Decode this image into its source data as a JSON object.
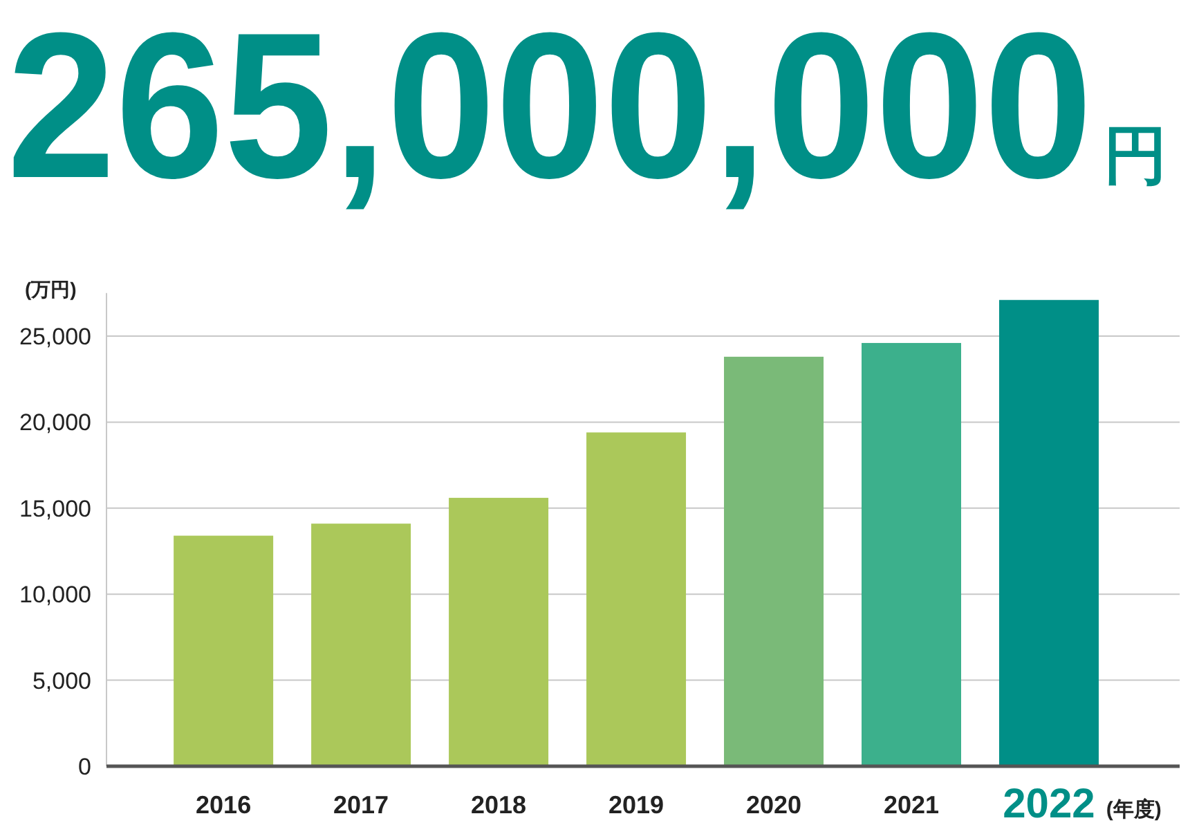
{
  "chart_data": {
    "type": "bar",
    "title": "265,000,000円",
    "ylabel": "(万円)",
    "xlabel": "(年度)",
    "categories": [
      "2016",
      "2017",
      "2018",
      "2019",
      "2020",
      "2021",
      "2022"
    ],
    "values": [
      13400,
      14100,
      15600,
      19400,
      23800,
      24600,
      27100
    ],
    "colors": [
      "#abc85a",
      "#abc85a",
      "#abc85a",
      "#abc85a",
      "#7aba78",
      "#3cb08c",
      "#008f87"
    ],
    "ylim": [
      0,
      27500
    ],
    "yticks": [
      0,
      {
        "value": 5000,
        "label": "5,000"
      },
      {
        "value": 10000,
        "label": "10,000"
      },
      {
        "value": 15000,
        "label": "15,000"
      },
      {
        "value": 20000,
        "label": "20,000"
      },
      {
        "value": 25000,
        "label": "25,000"
      }
    ],
    "grid": "y"
  }
}
